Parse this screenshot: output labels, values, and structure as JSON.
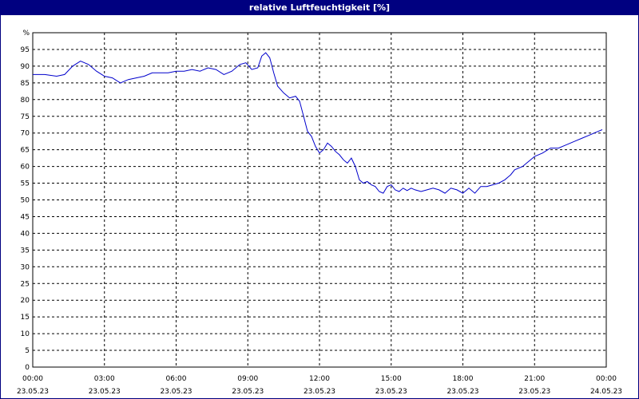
{
  "chart_data": {
    "type": "line",
    "title": "relative Luftfeuchtigkeit [%]",
    "y_unit_label": "%",
    "ylim": [
      0,
      100
    ],
    "y_ticks": [
      0,
      5,
      10,
      15,
      20,
      25,
      30,
      35,
      40,
      45,
      50,
      55,
      60,
      65,
      70,
      75,
      80,
      85,
      90,
      95
    ],
    "xlim": [
      "2023-05-23 00:00",
      "2023-05-24 00:00"
    ],
    "x_tick_labels": [
      {
        "time": "00:00",
        "date": "23.05.23"
      },
      {
        "time": "03:00",
        "date": "23.05.23"
      },
      {
        "time": "06:00",
        "date": "23.05.23"
      },
      {
        "time": "09:00",
        "date": "23.05.23"
      },
      {
        "time": "12:00",
        "date": "23.05.23"
      },
      {
        "time": "15:00",
        "date": "23.05.23"
      },
      {
        "time": "18:00",
        "date": "23.05.23"
      },
      {
        "time": "21:00",
        "date": "23.05.23"
      },
      {
        "time": "00:00",
        "date": "24.05.23"
      }
    ],
    "grid": true,
    "line_color": "#0000cc",
    "series": [
      {
        "x": [
          "00:00",
          "00:30",
          "01:00",
          "01:20",
          "01:40",
          "02:00",
          "02:20",
          "02:40",
          "03:00",
          "03:20",
          "03:40",
          "04:00",
          "04:20",
          "04:40",
          "05:00",
          "05:20",
          "05:40",
          "06:00",
          "06:20",
          "06:40",
          "07:00",
          "07:20",
          "07:40",
          "08:00",
          "08:20",
          "08:40",
          "08:55",
          "09:10",
          "09:25",
          "09:35",
          "09:45",
          "09:55",
          "10:05",
          "10:15",
          "10:30",
          "10:45",
          "11:00",
          "11:10",
          "11:20",
          "11:30",
          "11:40",
          "11:50",
          "12:00",
          "12:10",
          "12:20",
          "12:30",
          "12:40",
          "12:50",
          "13:00",
          "13:10",
          "13:20",
          "13:30",
          "13:40",
          "13:50",
          "14:00",
          "14:10",
          "14:20",
          "14:30",
          "14:40",
          "14:50",
          "15:00",
          "15:10",
          "15:20",
          "15:30",
          "15:40",
          "15:50",
          "16:00",
          "16:15",
          "16:30",
          "16:45",
          "17:00",
          "17:15",
          "17:30",
          "17:45",
          "18:00",
          "18:15",
          "18:30",
          "18:45",
          "19:00",
          "19:15",
          "19:30",
          "19:45",
          "20:00",
          "20:10",
          "20:20",
          "20:30",
          "20:40",
          "20:50",
          "21:00",
          "21:20",
          "21:40",
          "22:00",
          "22:20",
          "22:40",
          "23:00",
          "23:20",
          "23:40",
          "23:50"
        ],
        "values": [
          87.5,
          87.5,
          87.0,
          87.5,
          90.0,
          91.5,
          90.5,
          88.5,
          87.0,
          86.5,
          85.0,
          86.0,
          86.5,
          87.0,
          88.0,
          88.0,
          88.0,
          88.5,
          88.5,
          89.0,
          88.5,
          89.5,
          89.0,
          87.5,
          88.5,
          90.5,
          91.0,
          89.0,
          89.5,
          93.0,
          94.0,
          92.5,
          88.0,
          84.0,
          82.0,
          80.5,
          81.0,
          79.5,
          75.0,
          70.5,
          69.0,
          66.0,
          64.0,
          65.0,
          67.0,
          66.0,
          64.5,
          63.5,
          62.0,
          61.0,
          62.5,
          60.0,
          56.0,
          55.0,
          55.5,
          54.5,
          54.0,
          52.5,
          52.0,
          54.0,
          54.5,
          53.0,
          52.5,
          53.5,
          52.8,
          53.5,
          53.0,
          52.5,
          53.0,
          53.5,
          53.0,
          52.0,
          53.5,
          53.0,
          52.0,
          53.5,
          52.0,
          54.0,
          54.0,
          54.5,
          55.0,
          56.0,
          57.5,
          59.0,
          59.5,
          60.0,
          61.0,
          62.0,
          63.0,
          64.0,
          65.5,
          65.5,
          66.5,
          67.5,
          68.5,
          69.5,
          70.5,
          71.0
        ]
      }
    ]
  }
}
